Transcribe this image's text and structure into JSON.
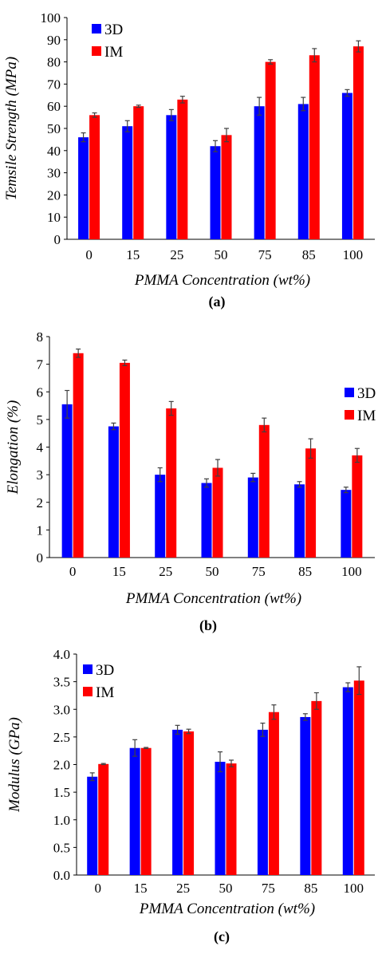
{
  "chart_data": [
    {
      "type": "bar",
      "panel_label": "(a)",
      "categories": [
        "0",
        "15",
        "25",
        "50",
        "75",
        "85",
        "100"
      ],
      "xlabel": "PMMA Concentration (wt%)",
      "ylabel": "Temsile Strength (MPa)",
      "ylim": [
        0,
        100
      ],
      "yticks": [
        "0",
        "10",
        "20",
        "30",
        "40",
        "50",
        "60",
        "70",
        "80",
        "90",
        "100"
      ],
      "grid": false,
      "legend_position": "top-left",
      "series": [
        {
          "name": "3D",
          "color": "#0000ff",
          "values": [
            46,
            51,
            56,
            42,
            60,
            61,
            66
          ],
          "errors": [
            2,
            2.5,
            2.5,
            2.5,
            4,
            3,
            1.5
          ]
        },
        {
          "name": "IM",
          "color": "#ff0000",
          "values": [
            56,
            60,
            63,
            47,
            80,
            83,
            87
          ],
          "errors": [
            1,
            0.5,
            1.5,
            3,
            1,
            3,
            2.5
          ]
        }
      ]
    },
    {
      "type": "bar",
      "panel_label": "(b)",
      "categories": [
        "0",
        "15",
        "25",
        "50",
        "75",
        "85",
        "100"
      ],
      "xlabel": "PMMA Concentration (wt%)",
      "ylabel": "Elongation (%)",
      "ylim": [
        0,
        8
      ],
      "yticks": [
        "0",
        "1",
        "2",
        "3",
        "4",
        "5",
        "6",
        "7",
        "8"
      ],
      "grid": false,
      "legend_position": "top-right",
      "series": [
        {
          "name": "3D",
          "color": "#0000ff",
          "values": [
            5.55,
            4.75,
            3.0,
            2.7,
            2.9,
            2.65,
            2.45
          ],
          "errors": [
            0.5,
            0.12,
            0.25,
            0.15,
            0.15,
            0.1,
            0.1
          ]
        },
        {
          "name": "IM",
          "color": "#ff0000",
          "values": [
            7.4,
            7.05,
            5.4,
            3.25,
            4.8,
            3.95,
            3.7
          ],
          "errors": [
            0.15,
            0.1,
            0.25,
            0.3,
            0.25,
            0.35,
            0.25
          ]
        }
      ]
    },
    {
      "type": "bar",
      "panel_label": "(c)",
      "categories": [
        "0",
        "15",
        "25",
        "50",
        "75",
        "85",
        "100"
      ],
      "xlabel": "PMMA Concentration (wt%)",
      "ylabel": "Modulus (GPa)",
      "ylim": [
        0,
        4
      ],
      "yticks": [
        "0.0",
        "0.5",
        "1.0",
        "1.5",
        "2.0",
        "2.5",
        "3.0",
        "3.5",
        "4.0"
      ],
      "grid": false,
      "legend_position": "top-left",
      "series": [
        {
          "name": "3D",
          "color": "#0000ff",
          "values": [
            1.78,
            2.3,
            2.63,
            2.05,
            2.63,
            2.86,
            3.4
          ],
          "errors": [
            0.07,
            0.15,
            0.08,
            0.18,
            0.12,
            0.06,
            0.08
          ]
        },
        {
          "name": "IM",
          "color": "#ff0000",
          "values": [
            2.01,
            2.3,
            2.6,
            2.02,
            2.95,
            3.15,
            3.52
          ],
          "errors": [
            0.01,
            0.01,
            0.04,
            0.06,
            0.13,
            0.15,
            0.25
          ]
        }
      ]
    }
  ]
}
